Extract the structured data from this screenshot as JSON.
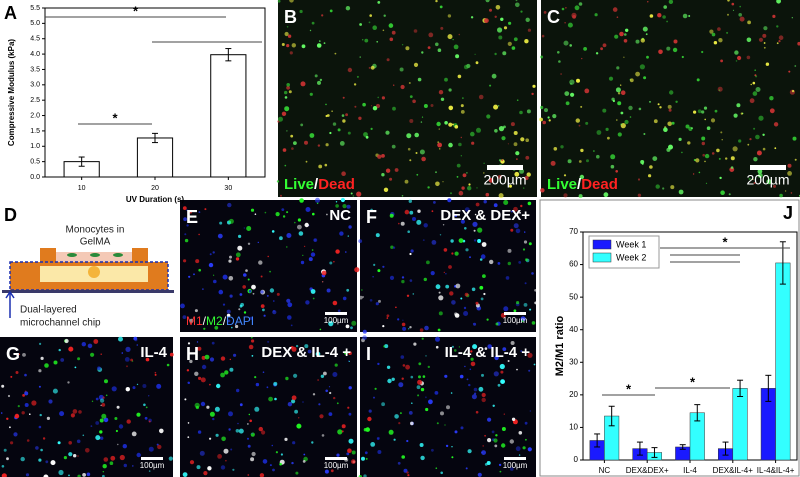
{
  "chart_data": [
    {
      "type": "bar",
      "label": "A",
      "x_label": "UV Duration (s)",
      "y_label": "Compressive Modulus (kPa)",
      "categories": [
        "10",
        "20",
        "30"
      ],
      "values": [
        0.5,
        1.27,
        3.98
      ],
      "errors": [
        0.15,
        0.15,
        0.2
      ],
      "color": "#ffffff",
      "ylim": [
        0,
        5.5
      ],
      "yticks": [
        {
          "value": 0,
          "label": "0.0"
        },
        0.5,
        {
          "value": 1,
          "label": "1.0"
        },
        1.5,
        {
          "value": 2,
          "label": "2.0"
        },
        2.5,
        {
          "value": 3,
          "label": "3.0"
        },
        3.5,
        {
          "value": 4,
          "label": "4.0"
        },
        4.5,
        {
          "value": 5,
          "label": "5.0"
        },
        5.5
      ],
      "annotations": [
        {
          "text": "*"
        },
        {
          "text": "*"
        }
      ]
    },
    {
      "type": "bar",
      "label": "J",
      "y_label": "M2/M1 ratio",
      "legend": "upper left",
      "categories": [
        "NC",
        "DEX&DEX+",
        "IL-4",
        "DEX&IL-4+",
        "IL-4&IL-4+"
      ],
      "series": [
        {
          "name": "Week 1",
          "color": "#1a1aff",
          "values": [
            6,
            3.5,
            4,
            3.5,
            22
          ],
          "errors": [
            2,
            2,
            0.7,
            2,
            4
          ]
        },
        {
          "name": "Week 2",
          "color": "#33ffff",
          "values": [
            13.5,
            2.3,
            14.5,
            22,
            60.5
          ],
          "errors": [
            3,
            1.5,
            2.5,
            2.5,
            6.5
          ]
        }
      ],
      "ylim": [
        0,
        70
      ],
      "yticks": [
        0,
        10,
        20,
        30,
        40,
        50,
        60,
        70
      ],
      "annotations": [
        {
          "text": "*"
        },
        {
          "text": "*"
        },
        {
          "text": "*"
        }
      ]
    }
  ],
  "images": [
    {
      "label": "B",
      "stain": [
        "Live",
        "/",
        "Dead"
      ],
      "scale_bar": "200µm"
    },
    {
      "label": "C",
      "stain": [
        "Live",
        "/",
        "Dead"
      ],
      "scale_bar": "200µm"
    },
    {
      "label": "E",
      "condition": "NC",
      "stain": [
        "M1",
        "/",
        "M2",
        "/",
        "DAPI"
      ],
      "scale_bar": "100µm"
    },
    {
      "label": "F",
      "condition": "DEX & DEX+",
      "scale_bar": "100µm"
    },
    {
      "label": "G",
      "condition": "IL-4",
      "scale_bar": "100µm"
    },
    {
      "label": "H",
      "condition": "DEX & IL-4 +",
      "scale_bar": "100µm"
    },
    {
      "label": "I",
      "condition": "IL-4 & IL-4 +",
      "scale_bar": "100µm"
    }
  ],
  "diagram": {
    "label": "D",
    "top_text": [
      "Monocytes in",
      "GelMA"
    ],
    "bottom_text": [
      "Dual-layered",
      "microchannel chip"
    ]
  }
}
